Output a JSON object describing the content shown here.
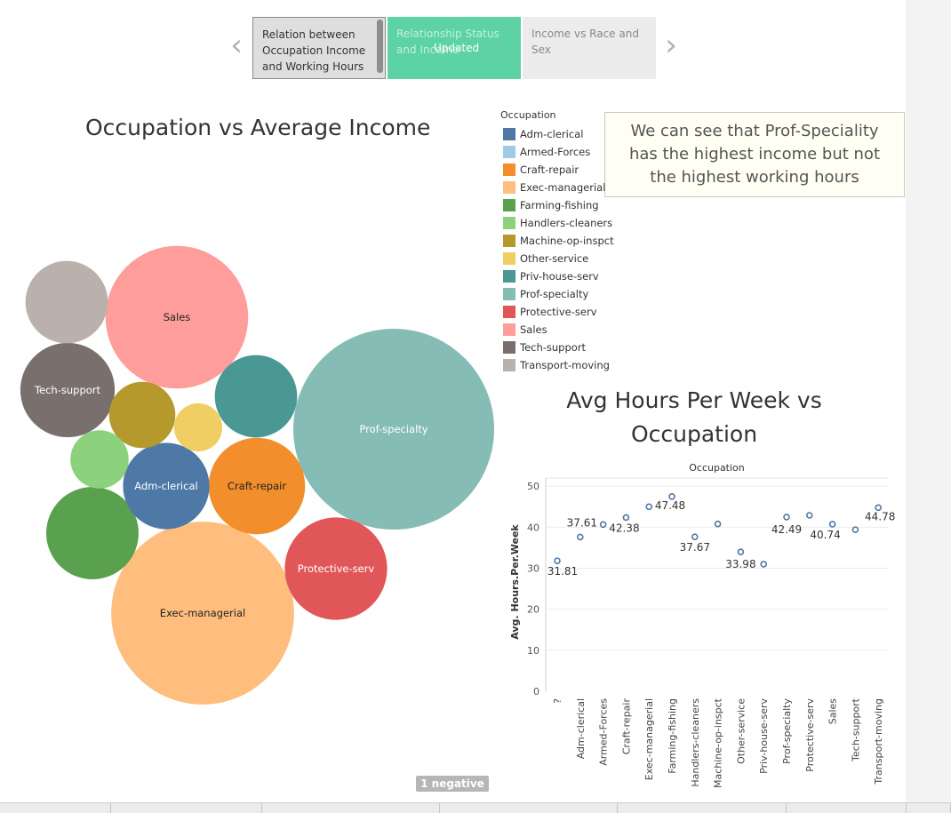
{
  "story": {
    "prev_icon": "chevron-left-icon",
    "next_icon": "chevron-right-icon",
    "points": [
      {
        "label": "Relation between Occupation Income and Working Hours"
      },
      {
        "label": "Relationship Status and Income",
        "badge": "Updated"
      },
      {
        "label": "Income vs Race and Sex"
      }
    ]
  },
  "bubble_chart": {
    "title": "Occupation vs Average Income"
  },
  "annotation": "We can see that Prof-Speciality has the highest income but not the highest working hours",
  "legend": {
    "title": "Occupation",
    "items": [
      {
        "label": "Adm-clerical",
        "color": "#4e79a7"
      },
      {
        "label": "Armed-Forces",
        "color": "#a0cbe8"
      },
      {
        "label": "Craft-repair",
        "color": "#f28e2b"
      },
      {
        "label": "Exec-managerial",
        "color": "#ffbe7d"
      },
      {
        "label": "Farming-fishing",
        "color": "#59a14f"
      },
      {
        "label": "Handlers-cleaners",
        "color": "#8cd17d"
      },
      {
        "label": "Machine-op-inspct",
        "color": "#b6992d"
      },
      {
        "label": "Other-service",
        "color": "#f1ce63"
      },
      {
        "label": "Priv-house-serv",
        "color": "#499894"
      },
      {
        "label": "Prof-specialty",
        "color": "#86bcb6"
      },
      {
        "label": "Protective-serv",
        "color": "#e15759"
      },
      {
        "label": "Sales",
        "color": "#ff9d9a"
      },
      {
        "label": "Tech-support",
        "color": "#79706e"
      },
      {
        "label": "Transport-moving",
        "color": "#bab0ac"
      }
    ]
  },
  "chart_data": [
    {
      "type": "bubble",
      "title": "Occupation vs Average Income",
      "bubbles": [
        {
          "category": "Prof-specialty",
          "label": "Prof-specialty",
          "color": "#86bcb6",
          "relative_size": 1.0
        },
        {
          "category": "Exec-managerial",
          "label": "Exec-managerial",
          "color": "#ffbe7d",
          "relative_size": 0.91
        },
        {
          "category": "Sales",
          "label": "Sales",
          "color": "#ff9d9a",
          "relative_size": 0.71
        },
        {
          "category": "Protective-serv",
          "label": "Protective-serv",
          "color": "#e15759",
          "relative_size": 0.51
        },
        {
          "category": "Craft-repair",
          "label": "Craft-repair",
          "color": "#f28e2b",
          "relative_size": 0.48
        },
        {
          "category": "Tech-support",
          "label": "Tech-support",
          "color": "#79706e",
          "relative_size": 0.47
        },
        {
          "category": "Farming-fishing",
          "label": "",
          "color": "#59a14f",
          "relative_size": 0.46
        },
        {
          "category": "Adm-clerical",
          "label": "Adm-clerical",
          "color": "#4e79a7",
          "relative_size": 0.43
        },
        {
          "category": "Priv-house-serv",
          "label": "",
          "color": "#499894",
          "relative_size": 0.41
        },
        {
          "category": "Transport-moving",
          "label": "",
          "color": "#bab0ac",
          "relative_size": 0.41
        },
        {
          "category": "Machine-op-inspct",
          "label": "",
          "color": "#b6992d",
          "relative_size": 0.33
        },
        {
          "category": "Handlers-cleaners",
          "label": "",
          "color": "#8cd17d",
          "relative_size": 0.29
        },
        {
          "category": "Other-service",
          "label": "",
          "color": "#f1ce63",
          "relative_size": 0.24
        }
      ]
    },
    {
      "type": "scatter",
      "title": "Avg Hours Per Week vs Occupation",
      "header": "Occupation",
      "ylabel": "Avg. Hours.Per.Week",
      "ylim": [
        0,
        52
      ],
      "yticks": [
        0,
        10,
        20,
        30,
        40,
        50
      ],
      "grid": true,
      "points": [
        {
          "category": "?",
          "value": 31.81,
          "label": "31.81"
        },
        {
          "category": "Adm-clerical",
          "value": 37.61,
          "label": "37.61"
        },
        {
          "category": "Armed-Forces",
          "value": 40.67,
          "label": ""
        },
        {
          "category": "Craft-repair",
          "value": 42.38,
          "label": "42.38"
        },
        {
          "category": "Exec-managerial",
          "value": 45.0,
          "label": ""
        },
        {
          "category": "Farming-fishing",
          "value": 47.48,
          "label": "47.48"
        },
        {
          "category": "Handlers-cleaners",
          "value": 37.67,
          "label": "37.67"
        },
        {
          "category": "Machine-op-inspct",
          "value": 40.8,
          "label": ""
        },
        {
          "category": "Other-service",
          "value": 33.98,
          "label": "33.98"
        },
        {
          "category": "Priv-house-serv",
          "value": 31.0,
          "label": ""
        },
        {
          "category": "Prof-specialty",
          "value": 42.49,
          "label": "42.49"
        },
        {
          "category": "Protective-serv",
          "value": 42.9,
          "label": ""
        },
        {
          "category": "Sales",
          "value": 40.74,
          "label": "40.74"
        },
        {
          "category": "Tech-support",
          "value": 39.4,
          "label": ""
        },
        {
          "category": "Transport-moving",
          "value": 44.78,
          "label": "44.78"
        }
      ]
    }
  ],
  "warning_badge": "1 negative"
}
